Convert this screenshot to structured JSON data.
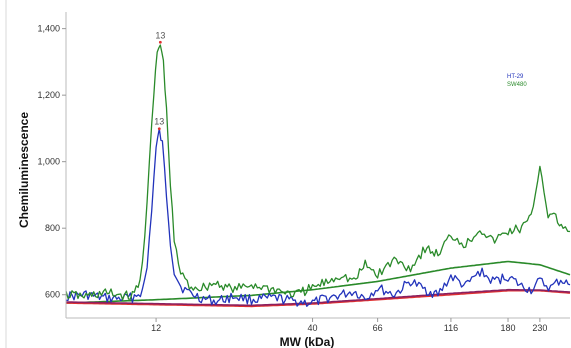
{
  "chart_data": {
    "type": "line",
    "xlabel": "MW (kDa)",
    "ylabel": "Chemiluminescence",
    "x_scale": "log",
    "xlim": [
      6,
      290
    ],
    "ylim": [
      530,
      1450
    ],
    "x_ticks": [
      {
        "value": 12,
        "label": "12"
      },
      {
        "value": 40,
        "label": "40"
      },
      {
        "value": 66,
        "label": "66"
      },
      {
        "value": 116,
        "label": "116"
      },
      {
        "value": 180,
        "label": "180"
      },
      {
        "value": 230,
        "label": "230"
      }
    ],
    "y_ticks": [
      {
        "value": 600,
        "label": "600"
      },
      {
        "value": 800,
        "label": "800"
      },
      {
        "value": 1000,
        "label": "1,000"
      },
      {
        "value": 1200,
        "label": "1,200"
      },
      {
        "value": 1400,
        "label": "1,400"
      }
    ],
    "grid": false,
    "legend_position": "top-right",
    "series": [
      {
        "name": "HT-29",
        "color": "#2233bb",
        "points": [
          [
            6,
            595
          ],
          [
            7,
            600
          ],
          [
            8,
            590
          ],
          [
            9,
            588
          ],
          [
            10,
            592
          ],
          [
            10.8,
            610
          ],
          [
            11.2,
            680
          ],
          [
            11.6,
            860
          ],
          [
            12.0,
            1040
          ],
          [
            12.3,
            1090
          ],
          [
            12.6,
            1050
          ],
          [
            13.0,
            900
          ],
          [
            13.4,
            760
          ],
          [
            13.8,
            670
          ],
          [
            14.5,
            625
          ],
          [
            15.5,
            605
          ],
          [
            17,
            590
          ],
          [
            19,
            580
          ],
          [
            22,
            595
          ],
          [
            25,
            585
          ],
          [
            30,
            590
          ],
          [
            35,
            580
          ],
          [
            40,
            575
          ],
          [
            45,
            590
          ],
          [
            50,
            600
          ],
          [
            55,
            610
          ],
          [
            60,
            590
          ],
          [
            66,
            620
          ],
          [
            75,
            600
          ],
          [
            85,
            640
          ],
          [
            95,
            615
          ],
          [
            105,
            600
          ],
          [
            116,
            655
          ],
          [
            130,
            625
          ],
          [
            145,
            670
          ],
          [
            160,
            640
          ],
          [
            180,
            655
          ],
          [
            200,
            625
          ],
          [
            215,
            615
          ],
          [
            230,
            640
          ],
          [
            250,
            620
          ],
          [
            270,
            645
          ],
          [
            290,
            630
          ]
        ]
      },
      {
        "name": "SW480",
        "color": "#2a8a2a",
        "points": [
          [
            6,
            600
          ],
          [
            7,
            595
          ],
          [
            8,
            605
          ],
          [
            9,
            600
          ],
          [
            10,
            595
          ],
          [
            10.6,
            640
          ],
          [
            11.0,
            780
          ],
          [
            11.4,
            1000
          ],
          [
            11.8,
            1200
          ],
          [
            12.1,
            1330
          ],
          [
            12.4,
            1350
          ],
          [
            12.7,
            1300
          ],
          [
            13.0,
            1150
          ],
          [
            13.4,
            930
          ],
          [
            13.8,
            760
          ],
          [
            14.5,
            665
          ],
          [
            15.5,
            625
          ],
          [
            17,
            620
          ],
          [
            19,
            635
          ],
          [
            22,
            615
          ],
          [
            25,
            630
          ],
          [
            30,
            615
          ],
          [
            35,
            600
          ],
          [
            40,
            620
          ],
          [
            45,
            640
          ],
          [
            50,
            660
          ],
          [
            55,
            640
          ],
          [
            60,
            690
          ],
          [
            66,
            660
          ],
          [
            75,
            705
          ],
          [
            85,
            680
          ],
          [
            95,
            740
          ],
          [
            105,
            720
          ],
          [
            116,
            780
          ],
          [
            130,
            750
          ],
          [
            145,
            800
          ],
          [
            160,
            760
          ],
          [
            180,
            790
          ],
          [
            200,
            800
          ],
          [
            215,
            830
          ],
          [
            230,
            990
          ],
          [
            245,
            840
          ],
          [
            260,
            830
          ],
          [
            275,
            800
          ],
          [
            290,
            790
          ]
        ]
      }
    ],
    "trend_lines": [
      {
        "color": "#2a8a2a",
        "points": [
          [
            6,
            575
          ],
          [
            12,
            585
          ],
          [
            25,
            598
          ],
          [
            40,
            615
          ],
          [
            66,
            640
          ],
          [
            116,
            680
          ],
          [
            180,
            700
          ],
          [
            230,
            690
          ],
          [
            290,
            660
          ]
        ]
      },
      {
        "color": "#e03030",
        "points": [
          [
            6,
            575
          ],
          [
            12,
            570
          ],
          [
            25,
            565
          ],
          [
            40,
            572
          ],
          [
            66,
            585
          ],
          [
            116,
            600
          ],
          [
            180,
            612
          ],
          [
            230,
            612
          ],
          [
            290,
            605
          ]
        ]
      },
      {
        "color": "#8a2060",
        "points": [
          [
            6,
            578
          ],
          [
            12,
            573
          ],
          [
            25,
            568
          ],
          [
            40,
            575
          ],
          [
            66,
            588
          ],
          [
            116,
            604
          ],
          [
            180,
            615
          ],
          [
            230,
            614
          ],
          [
            290,
            608
          ]
        ]
      }
    ],
    "annotations": [
      {
        "text": "13",
        "x": 12.4,
        "y": 1350,
        "color": "#2a8a2a"
      },
      {
        "text": "13",
        "x": 12.3,
        "y": 1090,
        "color": "#2233bb"
      }
    ]
  }
}
